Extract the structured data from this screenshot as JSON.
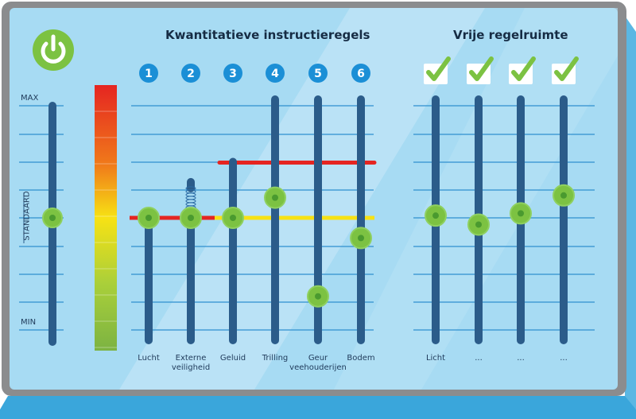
{
  "titles": {
    "quantitative": "Kwantitatieve instructieregels",
    "free": "Vrije regelruimte"
  },
  "scale": {
    "max": "MAX",
    "standard": "STANDAARD",
    "min": "MIN"
  },
  "level_range": [
    0,
    1
  ],
  "power_button": {
    "icon": "power-icon",
    "color": "#7cc242"
  },
  "master_slider": {
    "value": 0.5
  },
  "quantitative_sliders": [
    {
      "number": "1",
      "label": "Lucht",
      "value": 0.5,
      "norm": 0.5,
      "norm_color": "#e52521"
    },
    {
      "number": "2",
      "label": "Externe\nveiligheid",
      "value": 0.5,
      "norm": 0.5,
      "norm_color": "#e52521",
      "spring": true,
      "max": 0.66
    },
    {
      "number": "3",
      "label": "Geluid",
      "value": 0.5,
      "norm": 0.5,
      "norm_color": "#f7e214",
      "max": 0.75,
      "upper_norm": 0.75
    },
    {
      "number": "4",
      "label": "Trilling",
      "value": 0.59,
      "norm": 0.5,
      "norm_color": "#f7e214",
      "upper_norm": 0.75
    },
    {
      "number": "5",
      "label": "Geur\nveehouderijen",
      "value": 0.15,
      "norm": 0.5,
      "norm_color": "#f7e214",
      "upper_norm": 0.75
    },
    {
      "number": "6",
      "label": "Bodem",
      "value": 0.41,
      "norm": 0.5,
      "norm_color": "#f7e214",
      "upper_norm": 0.75
    }
  ],
  "free_sliders": [
    {
      "label": "Licht",
      "value": 0.51,
      "checked": true
    },
    {
      "label": "...",
      "value": 0.47,
      "checked": true
    },
    {
      "label": "...",
      "value": 0.52,
      "checked": true
    },
    {
      "label": "...",
      "value": 0.6,
      "checked": true
    }
  ],
  "colors": {
    "panel": "#a7dbf3",
    "frame": "#8b8c8e",
    "track": "#2b5c8a",
    "knob": "#7cc242",
    "knob_dot": "#4a9a2f",
    "grid": "#2f8fcf",
    "badge": "#1b8fd6",
    "norm_red": "#e52521",
    "norm_yellow": "#f7e214"
  }
}
